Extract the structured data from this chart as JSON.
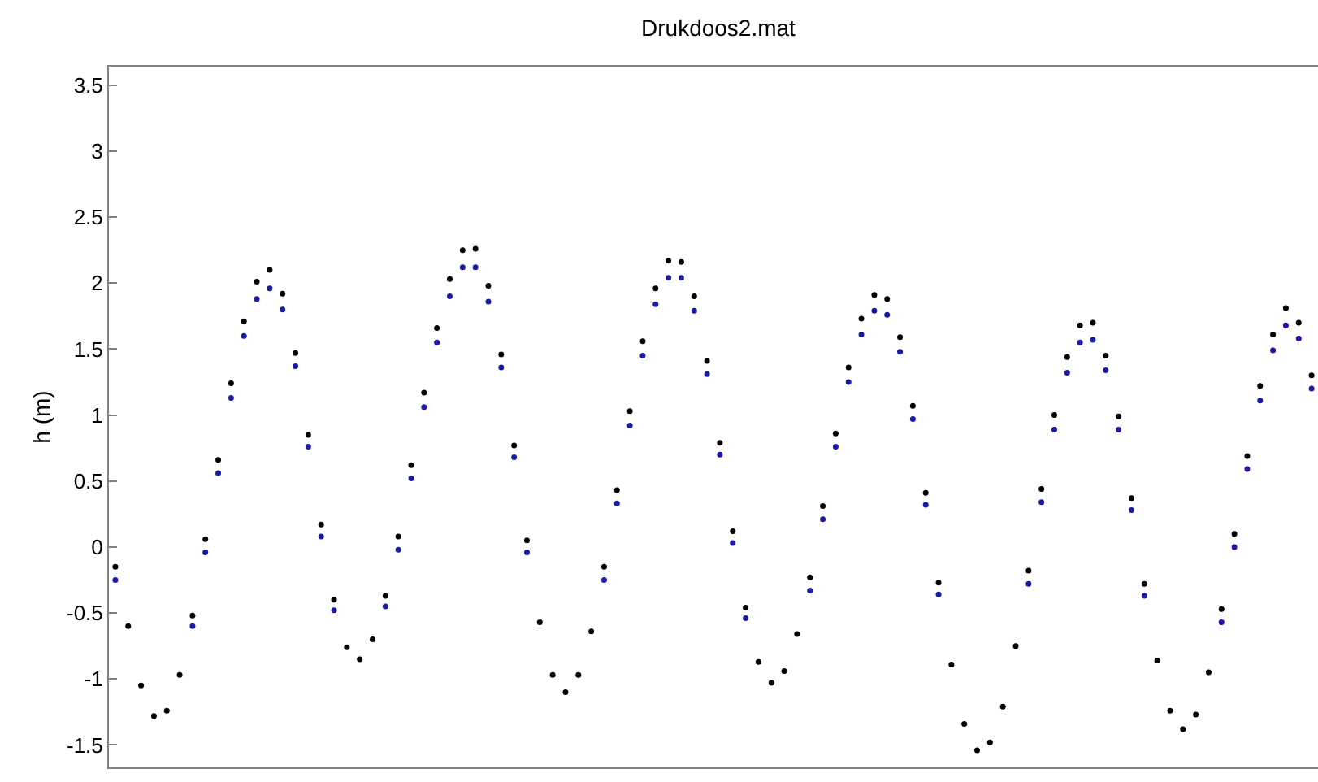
{
  "chart_data": {
    "type": "scatter",
    "title": "Drukdoos2.mat",
    "ylabel": "h (m)",
    "categories": [
      null,
      null,
      null,
      null,
      null,
      null,
      null,
      null,
      null,
      null,
      null,
      null,
      null,
      null,
      null,
      null,
      null,
      null,
      null,
      null,
      null,
      null,
      null,
      null,
      null,
      null,
      null,
      null,
      null,
      null,
      null,
      null,
      null,
      null,
      null,
      null,
      null,
      null,
      null,
      null,
      null,
      null,
      null,
      null,
      null,
      null,
      null,
      null,
      null,
      null,
      null,
      null,
      null,
      null,
      null,
      null,
      null,
      null,
      null,
      null,
      null,
      null,
      null,
      null,
      null,
      null,
      null,
      null,
      null,
      null,
      null,
      null,
      null,
      null,
      null,
      null,
      null,
      null,
      null,
      null,
      null,
      null,
      null,
      null,
      null,
      null,
      null,
      null,
      null,
      null,
      null,
      null,
      null,
      null
    ],
    "series": [
      {
        "color": "#1a1aa6",
        "values": [
          -0.25,
          null,
          null,
          null,
          null,
          null,
          -0.6,
          -0.04,
          0.56,
          1.13,
          1.6,
          1.88,
          1.96,
          1.8,
          1.37,
          0.76,
          0.08,
          -0.48,
          null,
          null,
          null,
          -0.45,
          -0.02,
          0.52,
          1.06,
          1.55,
          1.9,
          2.12,
          2.12,
          1.86,
          1.36,
          0.68,
          -0.04,
          null,
          null,
          null,
          null,
          null,
          -0.25,
          0.33,
          0.92,
          1.45,
          1.84,
          2.04,
          2.04,
          1.79,
          1.31,
          0.7,
          0.03,
          -0.54,
          null,
          null,
          null,
          null,
          -0.33,
          0.21,
          0.76,
          1.25,
          1.61,
          1.79,
          1.76,
          1.48,
          0.97,
          0.32,
          -0.36,
          null,
          null,
          null,
          null,
          null,
          null,
          -0.28,
          0.34,
          0.89,
          1.32,
          1.55,
          1.57,
          1.34,
          0.89,
          0.28,
          -0.37,
          null,
          null,
          null,
          null,
          null,
          -0.57,
          0.0,
          0.59,
          1.11,
          1.49,
          1.68,
          1.58,
          1.2
        ]
      },
      {
        "color": "#000000",
        "values": [
          -0.15,
          -0.6,
          -1.05,
          -1.28,
          -1.24,
          -0.97,
          -0.52,
          0.06,
          0.66,
          1.24,
          1.71,
          2.01,
          2.1,
          1.92,
          1.47,
          0.85,
          0.17,
          -0.4,
          -0.76,
          -0.85,
          -0.7,
          -0.37,
          0.08,
          0.62,
          1.17,
          1.66,
          2.03,
          2.25,
          2.26,
          1.98,
          1.46,
          0.77,
          0.05,
          -0.57,
          -0.97,
          -1.1,
          -0.97,
          -0.64,
          -0.15,
          0.43,
          1.03,
          1.56,
          1.96,
          2.17,
          2.16,
          1.9,
          1.41,
          0.79,
          0.12,
          -0.46,
          -0.87,
          -1.03,
          -0.94,
          -0.66,
          -0.23,
          0.31,
          0.86,
          1.36,
          1.73,
          1.91,
          1.88,
          1.59,
          1.07,
          0.41,
          -0.27,
          -0.89,
          -1.34,
          -1.54,
          -1.48,
          -1.21,
          -0.75,
          -0.18,
          0.44,
          1.0,
          1.44,
          1.68,
          1.7,
          1.45,
          0.99,
          0.37,
          -0.28,
          -0.86,
          -1.24,
          -1.38,
          -1.27,
          -0.95,
          -0.47,
          0.1,
          0.69,
          1.22,
          1.61,
          1.81,
          1.7,
          1.3
        ]
      }
    ],
    "ylim": [
      -1.67,
      3.64
    ],
    "yticks": [
      {
        "value": -1.5,
        "label": "-1.5"
      },
      {
        "value": -1,
        "label": "-1"
      },
      {
        "value": -0.5,
        "label": "-0.5"
      },
      0,
      0.5,
      1,
      1.5,
      2,
      2.5,
      3,
      3.5
    ],
    "tick_labels": "y",
    "marker": "circle"
  }
}
